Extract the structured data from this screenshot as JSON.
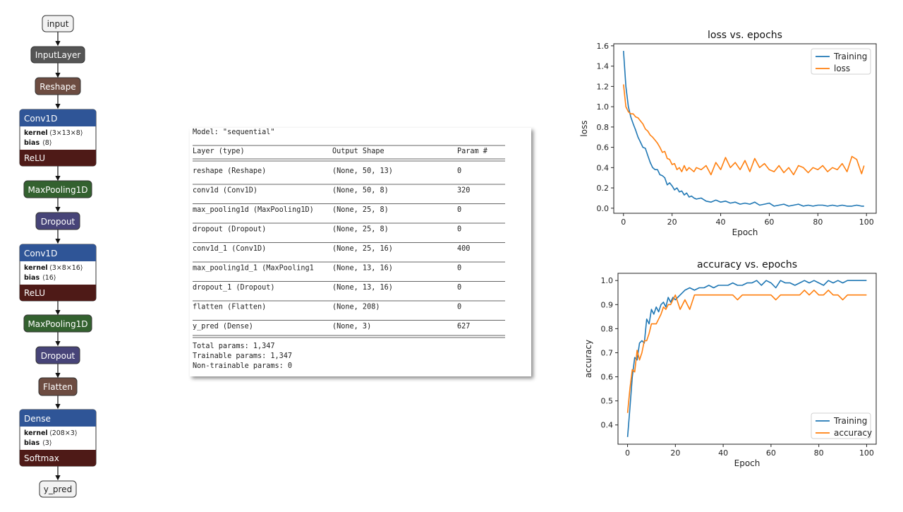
{
  "diagram": {
    "input": "input",
    "input_layer": "InputLayer",
    "reshape": "Reshape",
    "conv1": {
      "name": "Conv1D",
      "kernel_label": "kernel",
      "kernel_shape": "⟨3×13×8⟩",
      "bias_label": "bias",
      "bias_shape": "⟨8⟩",
      "activation": "ReLU"
    },
    "pool1": "MaxPooling1D",
    "dropout1": "Dropout",
    "conv2": {
      "name": "Conv1D",
      "kernel_label": "kernel",
      "kernel_shape": "⟨3×8×16⟩",
      "bias_label": "bias",
      "bias_shape": "⟨16⟩",
      "activation": "ReLU"
    },
    "pool2": "MaxPooling1D",
    "dropout2": "Dropout",
    "flatten": "Flatten",
    "dense": {
      "name": "Dense",
      "kernel_label": "kernel",
      "kernel_shape": "⟨208×3⟩",
      "bias_label": "bias",
      "bias_shape": "⟨3⟩",
      "activation": "Softmax"
    },
    "output": "y_pred",
    "colors": {
      "input_layer": "#555555",
      "reshape": "#6d4c41",
      "conv": "#2f5597",
      "activation": "#4e1a17",
      "pool": "#33612f",
      "dropout": "#474478",
      "flatten": "#6d4c41",
      "io_fill": "#f2f2f2"
    }
  },
  "summary": {
    "model_line": "Model: \"sequential\"",
    "headers": [
      "Layer (type)",
      "Output Shape",
      "Param #"
    ],
    "rows": [
      [
        "reshape (Reshape)",
        "(None, 50, 13)",
        "0"
      ],
      [
        "conv1d (Conv1D)",
        "(None, 50, 8)",
        "320"
      ],
      [
        "max_pooling1d (MaxPooling1D)",
        "(None, 25, 8)",
        "0"
      ],
      [
        "dropout (Dropout)",
        "(None, 25, 8)",
        "0"
      ],
      [
        "conv1d_1 (Conv1D)",
        "(None, 25, 16)",
        "400"
      ],
      [
        "max_pooling1d_1 (MaxPooling1",
        "(None, 13, 16)",
        "0"
      ],
      [
        "dropout_1 (Dropout)",
        "(None, 13, 16)",
        "0"
      ],
      [
        "flatten (Flatten)",
        "(None, 208)",
        "0"
      ],
      [
        "y_pred (Dense)",
        "(None, 3)",
        "627"
      ]
    ],
    "total": "Total params: 1,347",
    "trainable": "Trainable params: 1,347",
    "non_trainable": "Non-trainable params: 0"
  },
  "chart_data": [
    {
      "type": "line",
      "title": "loss vs. epochs",
      "xlabel": "Epoch",
      "ylabel": "loss",
      "xlim": [
        -4,
        104
      ],
      "ylim": [
        -0.05,
        1.62
      ],
      "xticks": [
        0,
        20,
        40,
        60,
        80,
        100
      ],
      "yticks": [
        0.0,
        0.2,
        0.4,
        0.6,
        0.8,
        1.0,
        1.2,
        1.4,
        1.6
      ],
      "legend_position": "top-right",
      "series": [
        {
          "name": "Training",
          "color": "#1f77b4",
          "x": [
            0,
            1,
            2,
            3,
            4,
            5,
            6,
            7,
            8,
            9,
            10,
            11,
            12,
            13,
            14,
            15,
            16,
            17,
            18,
            19,
            20,
            21,
            22,
            23,
            24,
            25,
            26,
            27,
            28,
            29,
            30,
            32,
            34,
            36,
            38,
            40,
            42,
            44,
            46,
            48,
            50,
            52,
            54,
            56,
            58,
            60,
            62,
            64,
            66,
            68,
            70,
            72,
            74,
            76,
            78,
            80,
            82,
            84,
            86,
            88,
            90,
            92,
            94,
            96,
            98,
            99
          ],
          "y": [
            1.55,
            1.2,
            1.0,
            0.9,
            0.83,
            0.77,
            0.7,
            0.65,
            0.6,
            0.59,
            0.52,
            0.45,
            0.4,
            0.38,
            0.38,
            0.33,
            0.32,
            0.3,
            0.23,
            0.25,
            0.22,
            0.18,
            0.2,
            0.16,
            0.17,
            0.13,
            0.15,
            0.11,
            0.12,
            0.1,
            0.09,
            0.1,
            0.07,
            0.06,
            0.08,
            0.06,
            0.07,
            0.05,
            0.06,
            0.04,
            0.05,
            0.04,
            0.06,
            0.03,
            0.04,
            0.05,
            0.02,
            0.03,
            0.04,
            0.02,
            0.03,
            0.04,
            0.02,
            0.03,
            0.02,
            0.03,
            0.03,
            0.02,
            0.03,
            0.02,
            0.03,
            0.02,
            0.02,
            0.03,
            0.02,
            0.02
          ]
        },
        {
          "name": "loss",
          "color": "#ff7f0e",
          "x": [
            0,
            1,
            2,
            3,
            4,
            5,
            6,
            7,
            8,
            9,
            10,
            11,
            12,
            13,
            14,
            15,
            16,
            17,
            18,
            19,
            20,
            21,
            22,
            23,
            24,
            25,
            26,
            27,
            28,
            29,
            30,
            32,
            34,
            36,
            38,
            40,
            42,
            44,
            46,
            48,
            50,
            52,
            54,
            56,
            58,
            60,
            62,
            64,
            66,
            68,
            70,
            72,
            74,
            76,
            78,
            80,
            82,
            84,
            86,
            88,
            90,
            92,
            94,
            96,
            98,
            99
          ],
          "y": [
            1.22,
            1.0,
            0.95,
            0.93,
            0.93,
            0.9,
            0.89,
            0.86,
            0.83,
            0.78,
            0.76,
            0.72,
            0.7,
            0.67,
            0.64,
            0.6,
            0.55,
            0.56,
            0.49,
            0.48,
            0.43,
            0.44,
            0.38,
            0.4,
            0.36,
            0.42,
            0.37,
            0.4,
            0.38,
            0.36,
            0.4,
            0.38,
            0.42,
            0.33,
            0.45,
            0.38,
            0.5,
            0.4,
            0.45,
            0.38,
            0.47,
            0.36,
            0.49,
            0.4,
            0.44,
            0.38,
            0.36,
            0.42,
            0.35,
            0.4,
            0.33,
            0.42,
            0.4,
            0.35,
            0.4,
            0.38,
            0.42,
            0.36,
            0.4,
            0.38,
            0.44,
            0.36,
            0.51,
            0.48,
            0.34,
            0.42
          ]
        }
      ]
    },
    {
      "type": "line",
      "title": "accuracy vs. epochs",
      "xlabel": "Epoch",
      "ylabel": "accuracy",
      "xlim": [
        -4,
        104
      ],
      "ylim": [
        0.32,
        1.03
      ],
      "xticks": [
        0,
        20,
        40,
        60,
        80,
        100
      ],
      "yticks": [
        0.4,
        0.5,
        0.6,
        0.7,
        0.8,
        0.9,
        1.0
      ],
      "legend_position": "bottom-right",
      "series": [
        {
          "name": "Training",
          "color": "#1f77b4",
          "x": [
            0,
            1,
            2,
            3,
            4,
            5,
            6,
            7,
            8,
            9,
            10,
            11,
            12,
            13,
            14,
            15,
            16,
            17,
            18,
            19,
            20,
            22,
            24,
            26,
            28,
            30,
            32,
            34,
            36,
            38,
            40,
            42,
            44,
            46,
            48,
            50,
            52,
            54,
            56,
            58,
            60,
            62,
            64,
            66,
            68,
            70,
            72,
            74,
            76,
            78,
            80,
            82,
            84,
            86,
            88,
            90,
            92,
            94,
            96,
            98,
            100
          ],
          "y": [
            0.35,
            0.47,
            0.6,
            0.68,
            0.67,
            0.74,
            0.75,
            0.74,
            0.84,
            0.82,
            0.88,
            0.86,
            0.89,
            0.87,
            0.9,
            0.91,
            0.89,
            0.93,
            0.91,
            0.93,
            0.92,
            0.94,
            0.96,
            0.97,
            0.96,
            0.97,
            0.97,
            0.98,
            0.97,
            0.98,
            0.98,
            0.98,
            0.99,
            0.98,
            0.98,
            0.99,
            0.99,
            1.0,
            0.98,
            1.0,
            0.99,
            0.97,
            1.0,
            0.99,
            0.99,
            0.98,
            0.99,
            1.0,
            0.99,
            1.0,
            0.99,
            0.98,
            1.0,
            0.99,
            1.0,
            0.99,
            1.0,
            1.0,
            1.0,
            1.0,
            1.0
          ]
        },
        {
          "name": "accuracy",
          "color": "#ff7f0e",
          "x": [
            0,
            1,
            2,
            3,
            4,
            5,
            6,
            7,
            8,
            9,
            10,
            11,
            12,
            13,
            14,
            15,
            16,
            17,
            18,
            19,
            20,
            22,
            24,
            26,
            28,
            30,
            32,
            34,
            36,
            38,
            40,
            42,
            44,
            46,
            48,
            50,
            52,
            54,
            56,
            58,
            60,
            62,
            64,
            66,
            68,
            70,
            72,
            74,
            76,
            78,
            80,
            82,
            84,
            86,
            88,
            90,
            92,
            94,
            96,
            98,
            100
          ],
          "y": [
            0.45,
            0.55,
            0.63,
            0.62,
            0.71,
            0.67,
            0.7,
            0.75,
            0.75,
            0.78,
            0.82,
            0.82,
            0.82,
            0.84,
            0.86,
            0.89,
            0.88,
            0.9,
            0.9,
            0.92,
            0.94,
            0.88,
            0.92,
            0.88,
            0.94,
            0.94,
            0.94,
            0.94,
            0.94,
            0.94,
            0.94,
            0.94,
            0.94,
            0.92,
            0.94,
            0.94,
            0.94,
            0.94,
            0.94,
            0.94,
            0.94,
            0.92,
            0.94,
            0.94,
            0.94,
            0.94,
            0.94,
            0.96,
            0.94,
            0.96,
            0.94,
            0.94,
            0.96,
            0.94,
            0.94,
            0.92,
            0.94,
            0.94,
            0.94,
            0.94,
            0.94
          ]
        }
      ]
    }
  ]
}
